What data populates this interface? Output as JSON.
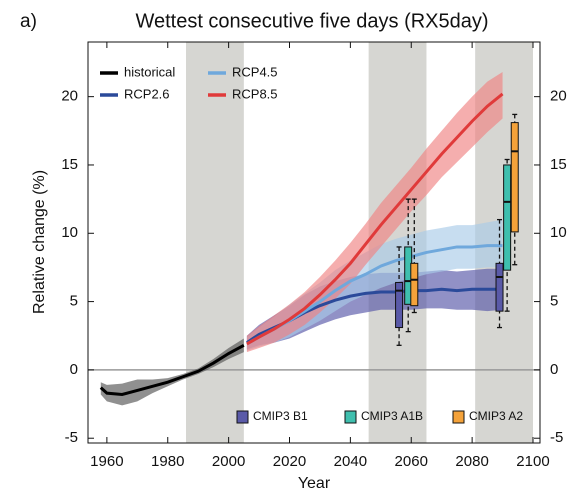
{
  "chart_data": {
    "type": "line",
    "panel_label": "a)",
    "title": "Wettest consecutive five days (RX5day)",
    "x_label": "Year",
    "y_label": "Relative change (%)",
    "xlim": [
      1953.8,
      2102.3
    ],
    "ylim": [
      -5.35,
      24
    ],
    "xticks": [
      1960,
      1980,
      2000,
      2020,
      2040,
      2060,
      2080,
      2100
    ],
    "yticks": [
      -5,
      0,
      5,
      10,
      15,
      20
    ],
    "y2lim": [
      -5.35,
      24
    ],
    "y2ticks": [
      -5,
      0,
      5,
      10,
      15,
      20
    ],
    "zero_line": true,
    "shaded_periods": [
      [
        1986,
        2005
      ],
      [
        2046,
        2065
      ],
      [
        2081,
        2100
      ]
    ],
    "series": [
      {
        "name": "historical",
        "color": "#000000",
        "band_color": "#555555",
        "x": [
          1958,
          1960,
          1965,
          1970,
          1975,
          1980,
          1985,
          1990,
          1995,
          2000,
          2005
        ],
        "values": [
          -1.3,
          -1.7,
          -1.8,
          -1.5,
          -1.2,
          -0.9,
          -0.5,
          -0.1,
          0.5,
          1.2,
          1.8
        ],
        "lower": [
          -1.8,
          -2.3,
          -2.6,
          -2.3,
          -1.7,
          -1.2,
          -0.7,
          -0.3,
          0.2,
          0.8,
          1.3
        ],
        "upper": [
          -0.9,
          -1.1,
          -1.0,
          -0.7,
          -0.7,
          -0.6,
          -0.3,
          0.1,
          0.8,
          1.6,
          2.3
        ]
      },
      {
        "name": "RCP2.6",
        "color": "#2b4a9a",
        "band_color": "#5656a8",
        "x": [
          2006,
          2010,
          2015,
          2020,
          2025,
          2030,
          2035,
          2040,
          2045,
          2050,
          2055,
          2060,
          2065,
          2070,
          2075,
          2080,
          2085,
          2090
        ],
        "values": [
          2.0,
          2.6,
          3.1,
          3.6,
          4.2,
          4.7,
          5.1,
          5.4,
          5.6,
          5.7,
          5.7,
          5.8,
          5.8,
          5.9,
          5.8,
          5.9,
          5.9,
          5.9
        ],
        "lower": [
          1.5,
          1.8,
          2.0,
          2.3,
          2.8,
          3.3,
          3.7,
          4.0,
          4.2,
          4.4,
          4.4,
          4.4,
          4.5,
          4.5,
          4.4,
          4.4,
          4.3,
          4.4
        ],
        "upper": [
          2.5,
          3.3,
          4.0,
          4.7,
          5.5,
          6.1,
          6.5,
          6.8,
          7.0,
          7.1,
          7.1,
          7.1,
          7.2,
          7.3,
          7.2,
          7.3,
          7.4,
          7.4
        ]
      },
      {
        "name": "RCP4.5",
        "color": "#6fa8dc",
        "band_color": "#a9cbe8",
        "x": [
          2006,
          2010,
          2015,
          2020,
          2025,
          2030,
          2035,
          2040,
          2045,
          2050,
          2055,
          2060,
          2065,
          2070,
          2075,
          2080,
          2085,
          2090
        ],
        "values": [
          1.9,
          2.4,
          3.0,
          3.6,
          4.3,
          5.0,
          5.8,
          6.5,
          7.0,
          7.6,
          8.0,
          8.3,
          8.6,
          8.8,
          9.0,
          9.0,
          9.1,
          9.1
        ],
        "lower": [
          1.4,
          1.7,
          2.0,
          2.4,
          3.0,
          3.6,
          4.3,
          5.0,
          5.5,
          6.0,
          6.4,
          6.7,
          7.0,
          7.2,
          7.4,
          7.4,
          7.5,
          7.5
        ],
        "upper": [
          2.4,
          3.1,
          3.9,
          4.8,
          5.6,
          6.4,
          7.3,
          8.0,
          8.6,
          9.2,
          9.6,
          9.9,
          10.2,
          10.4,
          10.6,
          10.6,
          10.8,
          11.0
        ]
      },
      {
        "name": "RCP8.5",
        "color": "#e03a3a",
        "band_color": "#ef8282",
        "x": [
          2006,
          2010,
          2015,
          2020,
          2025,
          2030,
          2035,
          2040,
          2045,
          2050,
          2055,
          2060,
          2065,
          2070,
          2075,
          2080,
          2085,
          2090
        ],
        "values": [
          1.9,
          2.4,
          3.0,
          3.7,
          4.5,
          5.5,
          6.6,
          7.8,
          9.2,
          10.6,
          11.9,
          13.2,
          14.5,
          15.8,
          17.0,
          18.2,
          19.3,
          20.2
        ],
        "lower": [
          1.3,
          1.6,
          2.0,
          2.6,
          3.3,
          4.2,
          5.2,
          6.3,
          7.7,
          9.0,
          10.3,
          11.6,
          12.8,
          14.1,
          15.2,
          16.3,
          17.4,
          18.4
        ],
        "upper": [
          2.5,
          3.2,
          4.0,
          4.8,
          5.7,
          6.8,
          8.0,
          9.3,
          10.7,
          12.2,
          13.5,
          14.8,
          16.2,
          17.5,
          18.8,
          20.0,
          21.1,
          21.8
        ]
      }
    ],
    "boxes": [
      {
        "name": "CMIP3 B1",
        "color": "#5a5aa8",
        "x": [
          2056,
          2089
        ],
        "low": [
          1.8,
          3.1
        ],
        "q1": [
          3.1,
          4.3
        ],
        "median": [
          5.8,
          6.8
        ],
        "q3": [
          6.4,
          7.8
        ],
        "high": [
          9.0,
          11.0
        ]
      },
      {
        "name": "CMIP3 A1B",
        "color": "#3fbfae",
        "x": [
          2059,
          2091.5
        ],
        "low": [
          2.8,
          4.3
        ],
        "q1": [
          4.8,
          7.3
        ],
        "median": [
          6.5,
          12.3
        ],
        "q3": [
          9.0,
          15.0
        ],
        "high": [
          12.5,
          15.4
        ]
      },
      {
        "name": "CMIP3 A2",
        "color": "#f4a23a",
        "x": [
          2061,
          2094
        ],
        "low": [
          4.2,
          7.7
        ],
        "q1": [
          4.7,
          10.1
        ],
        "median": [
          6.6,
          16.0
        ],
        "q3": [
          7.8,
          18.1
        ],
        "high": [
          12.5,
          18.7
        ]
      }
    ]
  }
}
